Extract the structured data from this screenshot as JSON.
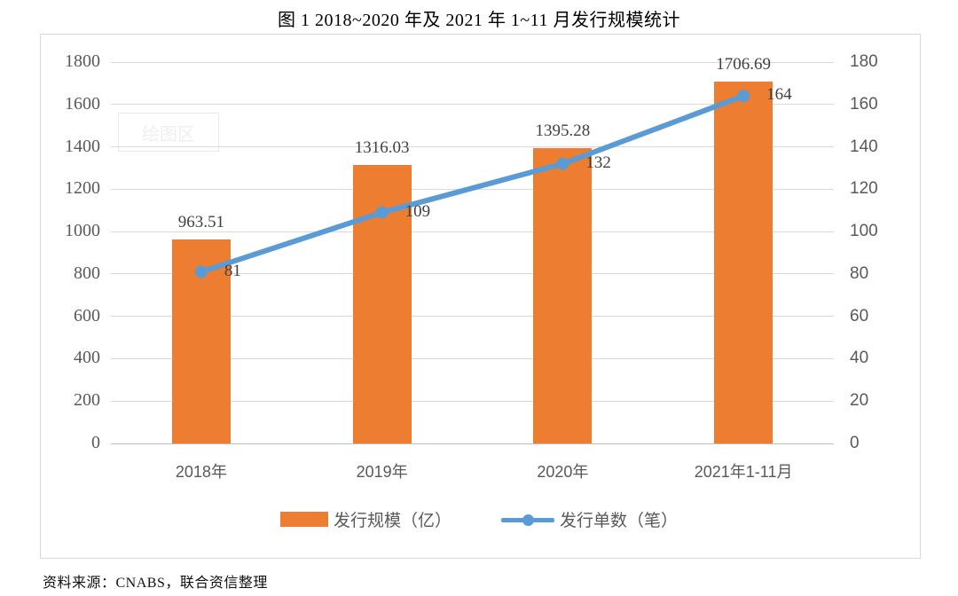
{
  "title": "图 1 2018~2020 年及 2021 年 1~11 月发行规模统计",
  "source": "资料来源：CNABS，联合资信整理",
  "watermark": "绘图区",
  "colors": {
    "bar": "#ED7D31",
    "line": "#5B9BD5",
    "grid": "#D9D9D9",
    "axis_text": "#595959",
    "data_label_text": "#404040"
  },
  "chart_data": {
    "type": "bar",
    "subtype": "combo-bar-line-dual-axis",
    "title": "图 1 2018~2020 年及 2021 年 1~11 月发行规模统计",
    "categories": [
      "2018年",
      "2019年",
      "2020年",
      "2021年1-11月"
    ],
    "series": [
      {
        "name": "发行规模（亿）",
        "type": "bar",
        "axis": "left",
        "color": "#ED7D31",
        "values": [
          963.51,
          1316.03,
          1395.28,
          1706.69
        ],
        "labels": [
          "963.51",
          "1316.03",
          "1395.28",
          "1706.69"
        ]
      },
      {
        "name": "发行单数（笔）",
        "type": "line",
        "axis": "right",
        "color": "#5B9BD5",
        "values": [
          81,
          109,
          132,
          164
        ],
        "labels": [
          "81",
          "109",
          "132",
          "164"
        ]
      }
    ],
    "left_axis": {
      "min": 0,
      "max": 1800,
      "step": 200,
      "ticks": [
        "0",
        "200",
        "400",
        "600",
        "800",
        "1000",
        "1200",
        "1400",
        "1600",
        "1800"
      ]
    },
    "right_axis": {
      "min": 0,
      "max": 180,
      "step": 20,
      "ticks": [
        "0",
        "20",
        "40",
        "60",
        "80",
        "100",
        "120",
        "140",
        "160",
        "180"
      ]
    },
    "grid": true,
    "legend_position": "bottom"
  }
}
